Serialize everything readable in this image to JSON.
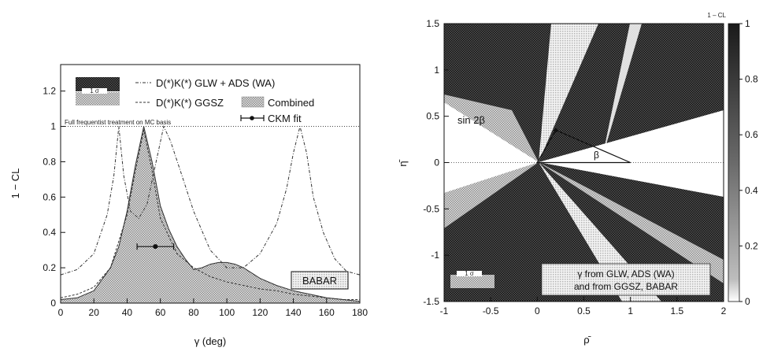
{
  "chart_data": [
    {
      "type": "line",
      "xlabel": "γ (deg)",
      "ylabel": "1 − CL",
      "xlim": [
        0,
        180
      ],
      "ylim": [
        0,
        1.35
      ],
      "xticks": [
        0,
        20,
        40,
        60,
        80,
        100,
        120,
        140,
        160,
        180
      ],
      "yticks": [
        0,
        0.2,
        0.4,
        0.6,
        0.8,
        1,
        1.2
      ],
      "ytick_labels": [
        "0",
        "0.2",
        "0.4",
        "0.6",
        "0.8",
        "1",
        "1.2"
      ],
      "legend": {
        "glw_ads": "D(*)K(*) GLW + ADS (WA)",
        "ggsz": "D(*)K(*) GGSZ",
        "combined": "Combined",
        "ckm_fit": "CKM fit",
        "swatch_text": "1 σ"
      },
      "note": "Full frequentist treatment on MC basis",
      "badge": "BABAR",
      "series": [
        {
          "name": "D(*)K(*) GLW + ADS (WA)",
          "style": "dash-dot",
          "x": [
            0,
            10,
            20,
            28,
            32,
            35,
            38,
            42,
            47,
            52,
            57,
            62,
            66,
            72,
            80,
            90,
            100,
            110,
            120,
            130,
            136,
            140,
            144,
            148,
            152,
            158,
            165,
            172,
            180
          ],
          "y": [
            0.16,
            0.19,
            0.28,
            0.5,
            0.72,
            1.0,
            0.72,
            0.52,
            0.48,
            0.56,
            0.78,
            1.0,
            0.92,
            0.75,
            0.52,
            0.3,
            0.2,
            0.2,
            0.28,
            0.45,
            0.65,
            0.85,
            1.0,
            0.85,
            0.6,
            0.4,
            0.25,
            0.18,
            0.16
          ]
        },
        {
          "name": "D(*)K(*) GGSZ",
          "style": "dashed",
          "x": [
            0,
            10,
            20,
            30,
            40,
            45,
            50,
            55,
            60,
            70,
            80,
            90,
            100,
            110,
            120,
            130,
            140,
            150,
            160,
            170,
            180
          ],
          "y": [
            0.03,
            0.05,
            0.09,
            0.2,
            0.5,
            0.75,
            0.98,
            0.75,
            0.48,
            0.28,
            0.2,
            0.15,
            0.12,
            0.1,
            0.08,
            0.07,
            0.05,
            0.04,
            0.03,
            0.02,
            0.02
          ]
        },
        {
          "name": "Combined",
          "style": "filled",
          "x": [
            0,
            10,
            20,
            30,
            35,
            40,
            45,
            50,
            55,
            60,
            65,
            70,
            75,
            80,
            85,
            90,
            95,
            100,
            105,
            110,
            115,
            120,
            130,
            140,
            150,
            160,
            170,
            180
          ],
          "y": [
            0.02,
            0.03,
            0.07,
            0.2,
            0.32,
            0.52,
            0.78,
            1.0,
            0.8,
            0.55,
            0.42,
            0.32,
            0.25,
            0.19,
            0.2,
            0.22,
            0.23,
            0.23,
            0.22,
            0.2,
            0.17,
            0.14,
            0.1,
            0.07,
            0.05,
            0.03,
            0.02,
            0.01
          ]
        }
      ],
      "ckm_fit": {
        "x": 57,
        "xerr": [
          46,
          68
        ],
        "y": 0.32
      }
    },
    {
      "type": "heatmap",
      "xlabel": "ρ̄",
      "ylabel": "η̄",
      "xlim": [
        -1,
        2
      ],
      "ylim": [
        -1.5,
        1.5
      ],
      "xticks": [
        -1,
        -0.5,
        0,
        0.5,
        1,
        1.5,
        2
      ],
      "yticks": [
        -1.5,
        -1,
        -0.5,
        0,
        0.5,
        1,
        1.5
      ],
      "colorbar": {
        "label": "1 – CL",
        "range": [
          0,
          1
        ],
        "ticks": [
          0,
          0.2,
          0.4,
          0.6,
          0.8,
          1
        ]
      },
      "annotations": {
        "sin2beta": "sin 2β",
        "beta": "β",
        "legend_line1": "γ from GLW, ADS (WA)",
        "legend_line2": "and from GGSZ, BABAR",
        "swatch_text": "1 σ"
      },
      "apex": {
        "x": 0.2,
        "y": 0.35
      }
    }
  ]
}
